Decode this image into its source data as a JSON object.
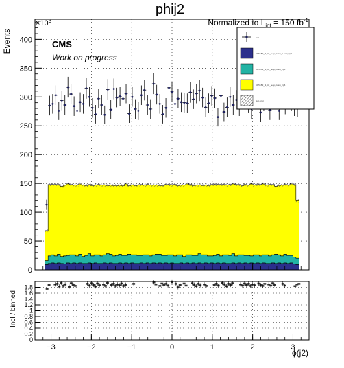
{
  "chart_data": {
    "type": "bar",
    "title": "phij2",
    "lumi_label": "Normalized to L",
    "lumi_sub": "int",
    "lumi_value": " = 150 fb",
    "lumi_sup": "-1",
    "cms_label": "CMS",
    "cms_sublabel": "Work on progress",
    "ylabel": "Events",
    "y_exponent": "×10",
    "y_exponent_power": "3",
    "xlabel": "ϕ(j2)",
    "ratio_ylabel": "Incl / binned",
    "xlim": [
      -3.4,
      3.4
    ],
    "ylim": [
      0,
      435
    ],
    "ratio_ylim": [
      0,
      2.0
    ],
    "x_ticks": [
      -3,
      -2,
      -1,
      0,
      1,
      2,
      3
    ],
    "y_ticks": [
      0,
      50,
      100,
      150,
      200,
      250,
      300,
      350,
      400
    ],
    "ratio_ticks": [
      0,
      0.2,
      0.4,
      0.6,
      0.8,
      1,
      1.2,
      1.4,
      1.6,
      1.8
    ],
    "ratio_tick_labels": [
      "0",
      "0.2",
      "0.4",
      "0.6",
      "0.8",
      "1",
      "1.2",
      "1.4",
      "1.6",
      "1.8"
    ],
    "grid": true,
    "legend_position": "top-right",
    "legend": [
      {
        "label": "Incl",
        "kind": "marker"
      },
      {
        "label": "CP5+B2_f1_ttz_reap_cosm_b.fuzz_cp5",
        "kind": "fill",
        "color": "#2b2f8b"
      },
      {
        "label": "CP5+B2_f1_ttz_reap_cosm_cp6",
        "kind": "fill",
        "color": "#22b3a4"
      },
      {
        "label": "CP5+B2_f1_ttz_reap_cosm_cp6",
        "kind": "fill",
        "color": "#ffff00"
      },
      {
        "label": "stat error",
        "kind": "hatch"
      }
    ],
    "series": [
      {
        "name": "CP5+B2_f1_ttz_reap_cosm_b.fuzz_cp5",
        "color": "#2b2f8b",
        "values": [
          9,
          11,
          12,
          11,
          12,
          11,
          10,
          12,
          11,
          12,
          11,
          12,
          11,
          11,
          12,
          11,
          12,
          11,
          11,
          12,
          11,
          12,
          11,
          11,
          12,
          11,
          12,
          11,
          12,
          11,
          11,
          12,
          11,
          12,
          11,
          12,
          11,
          12,
          11,
          12,
          11,
          12,
          11,
          11,
          12,
          11,
          12,
          11,
          12,
          11,
          12,
          11,
          12,
          11,
          12,
          11,
          12,
          11,
          12,
          11,
          11,
          12,
          11,
          12,
          11,
          12,
          11,
          12,
          11,
          12,
          11,
          12,
          11,
          11,
          12,
          11,
          12,
          11,
          12,
          11,
          12,
          10,
          9
        ]
      },
      {
        "name": "CP5+B2_f1_ttz_reap_cosm_cp6",
        "color": "#22b3a4",
        "values": [
          7,
          13,
          14,
          13,
          15,
          12,
          14,
          13,
          15,
          14,
          13,
          15,
          12,
          14,
          16,
          13,
          14,
          15,
          13,
          14,
          17,
          15,
          13,
          14,
          15,
          14,
          13,
          16,
          14,
          15,
          14,
          13,
          15,
          14,
          13,
          14,
          16,
          15,
          14,
          13,
          15,
          14,
          13,
          15,
          14,
          12,
          14,
          15,
          13,
          14,
          16,
          15,
          14,
          13,
          12,
          14,
          15,
          13,
          14,
          15,
          14,
          16,
          13,
          14,
          15,
          13,
          14,
          12,
          15,
          14,
          13,
          14,
          15,
          13,
          14,
          16,
          14,
          13,
          15,
          14,
          13,
          12,
          11
        ]
      },
      {
        "name": "CP5+B2_f1_ttz_reap_cosm_cp6",
        "color": "#ffff00",
        "values": [
          52,
          124,
          122,
          124,
          121,
          122,
          123,
          124,
          122,
          121,
          123,
          122,
          124,
          121,
          120,
          122,
          121,
          122,
          123,
          121,
          118,
          120,
          122,
          121,
          120,
          121,
          124,
          119,
          121,
          120,
          122,
          123,
          121,
          122,
          123,
          121,
          120,
          119,
          121,
          123,
          122,
          121,
          124,
          120,
          121,
          124,
          123,
          122,
          121,
          122,
          119,
          120,
          121,
          122,
          124,
          123,
          121,
          124,
          122,
          121,
          123,
          121,
          124,
          122,
          120,
          123,
          122,
          125,
          121,
          122,
          124,
          123,
          121,
          124,
          122,
          118,
          120,
          123,
          121,
          122,
          124,
          126,
          100
        ]
      }
    ],
    "data_points": {
      "name": "Incl",
      "values": [
        113,
        285,
        288,
        303,
        276,
        294,
        286,
        317,
        305,
        284,
        276,
        291,
        288,
        315,
        300,
        281,
        270,
        297,
        286,
        269,
        313,
        278,
        314,
        299,
        301,
        297,
        306,
        271,
        300,
        279,
        276,
        303,
        312,
        286,
        279,
        323,
        304,
        288,
        270,
        281,
        316,
        309,
        288,
        297,
        291,
        290,
        289,
        308,
        296,
        306,
        311,
        299,
        282,
        289,
        302,
        298,
        265,
        302,
        274,
        282,
        300,
        286,
        295,
        284,
        333,
        319,
        290,
        279,
        300,
        307,
        273,
        293,
        285,
        277,
        309,
        297,
        276,
        309,
        287,
        303,
        293,
        284,
        282
      ],
      "errors": [
        9,
        17,
        17,
        17,
        16,
        17,
        17,
        18,
        17,
        17,
        16,
        17,
        17,
        18,
        17,
        17,
        16,
        17,
        17,
        16,
        18,
        17,
        18,
        17,
        17,
        17,
        17,
        16,
        17,
        17,
        16,
        17,
        18,
        17,
        17,
        18,
        17,
        17,
        16,
        17,
        18,
        18,
        17,
        17,
        17,
        17,
        17,
        18,
        17,
        17,
        18,
        17,
        17,
        17,
        17,
        17,
        16,
        17,
        16,
        17,
        17,
        17,
        17,
        17,
        18,
        18,
        17,
        17,
        17,
        18,
        16,
        17,
        17,
        17,
        18,
        17,
        16,
        18,
        17,
        17,
        17,
        17,
        17
      ]
    },
    "ratio_points": {
      "x": [
        -3.1,
        -3.05,
        -2.9,
        -2.85,
        -2.8,
        -2.75,
        -2.7,
        -2.65,
        -2.55,
        -2.5,
        -2.45,
        -2.4,
        -2.1,
        -2.05,
        -2.0,
        -1.95,
        -1.9,
        -1.85,
        -1.8,
        -1.7,
        -1.65,
        -1.6,
        -1.5,
        -1.45,
        -1.4,
        -1.35,
        -1.3,
        -1.25,
        -1.2,
        -1.15,
        -0.95,
        -0.45,
        -0.4,
        -0.3,
        -0.25,
        -0.2,
        -0.15,
        -0.1,
        0.0,
        0.1,
        0.15,
        0.2,
        0.3,
        0.35,
        0.5,
        0.55,
        0.6,
        0.65,
        0.7,
        0.8,
        0.85,
        1.05,
        1.1,
        1.15,
        1.25,
        1.3,
        1.35,
        1.4,
        1.45,
        1.5,
        1.7,
        1.75,
        1.8,
        1.85,
        1.9,
        1.95,
        2.0,
        2.05,
        2.15,
        2.2,
        2.25,
        2.3,
        2.4,
        2.45,
        2.5,
        2.55,
        2.75,
        2.8,
        3.05,
        3.1,
        3.15
      ],
      "values": [
        1.75,
        1.88,
        1.9,
        1.92,
        1.83,
        1.95,
        1.85,
        1.9,
        1.82,
        1.94,
        1.88,
        1.85,
        1.92,
        1.86,
        1.94,
        1.88,
        1.83,
        1.93,
        1.87,
        1.9,
        1.85,
        1.95,
        1.88,
        1.92,
        1.85,
        1.9,
        1.87,
        1.93,
        1.85,
        1.89,
        1.92,
        1.97,
        1.9,
        1.85,
        1.93,
        1.88,
        1.92,
        1.86,
        1.98,
        1.92,
        1.8,
        1.88,
        1.93,
        1.86,
        1.94,
        1.89,
        1.84,
        1.92,
        1.87,
        1.9,
        1.85,
        1.88,
        1.92,
        1.86,
        1.95,
        1.9,
        1.84,
        1.92,
        1.88,
        1.94,
        1.9,
        1.86,
        1.93,
        1.88,
        1.92,
        1.85,
        1.9,
        1.87,
        1.93,
        1.88,
        1.85,
        1.92,
        1.9,
        1.86,
        1.94,
        1.88,
        1.92,
        1.86,
        1.84,
        1.9,
        1.92
      ]
    }
  }
}
